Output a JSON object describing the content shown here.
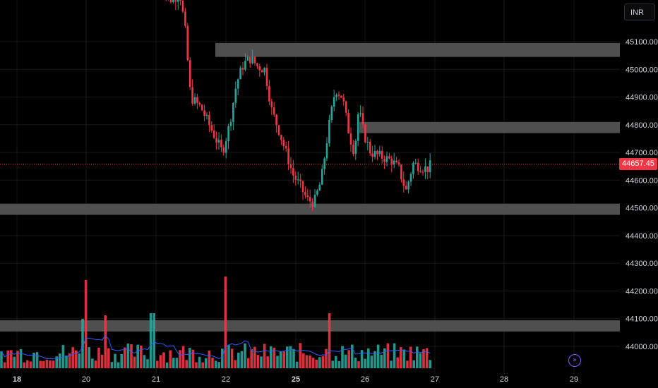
{
  "chart_data": {
    "type": "candlestick",
    "currency": "INR",
    "last_price": "44657.45",
    "price_axis": {
      "ticks": [
        "45100.00",
        "45000.00",
        "44900.00",
        "44800.00",
        "44700.00",
        "44600.00",
        "44500.00",
        "44400.00",
        "44300.00",
        "44200.00",
        "44100.00",
        "44000.00"
      ],
      "range": [
        43950,
        45250
      ]
    },
    "time_axis": {
      "labels": [
        "18",
        "20",
        "21",
        "22",
        "25",
        "26",
        "27",
        "28",
        "29"
      ],
      "bold_labels": [
        "18",
        "25"
      ]
    },
    "zones": [
      {
        "from": 45055,
        "to": 45085
      },
      {
        "from": 44780,
        "to": 44800
      },
      {
        "from": 44485,
        "to": 44505
      },
      {
        "from": 44064,
        "to": 44084
      }
    ],
    "colors": {
      "up": "#26a69a",
      "down": "#f23645",
      "zone": "#5d5d5d",
      "ma": "#2962ff",
      "grid": "#181818",
      "last_price": "#f23645"
    },
    "grid": true
  },
  "ui": {
    "currency_button": "INR",
    "goto_realtime_icon": "double-chevron-right-icon"
  }
}
